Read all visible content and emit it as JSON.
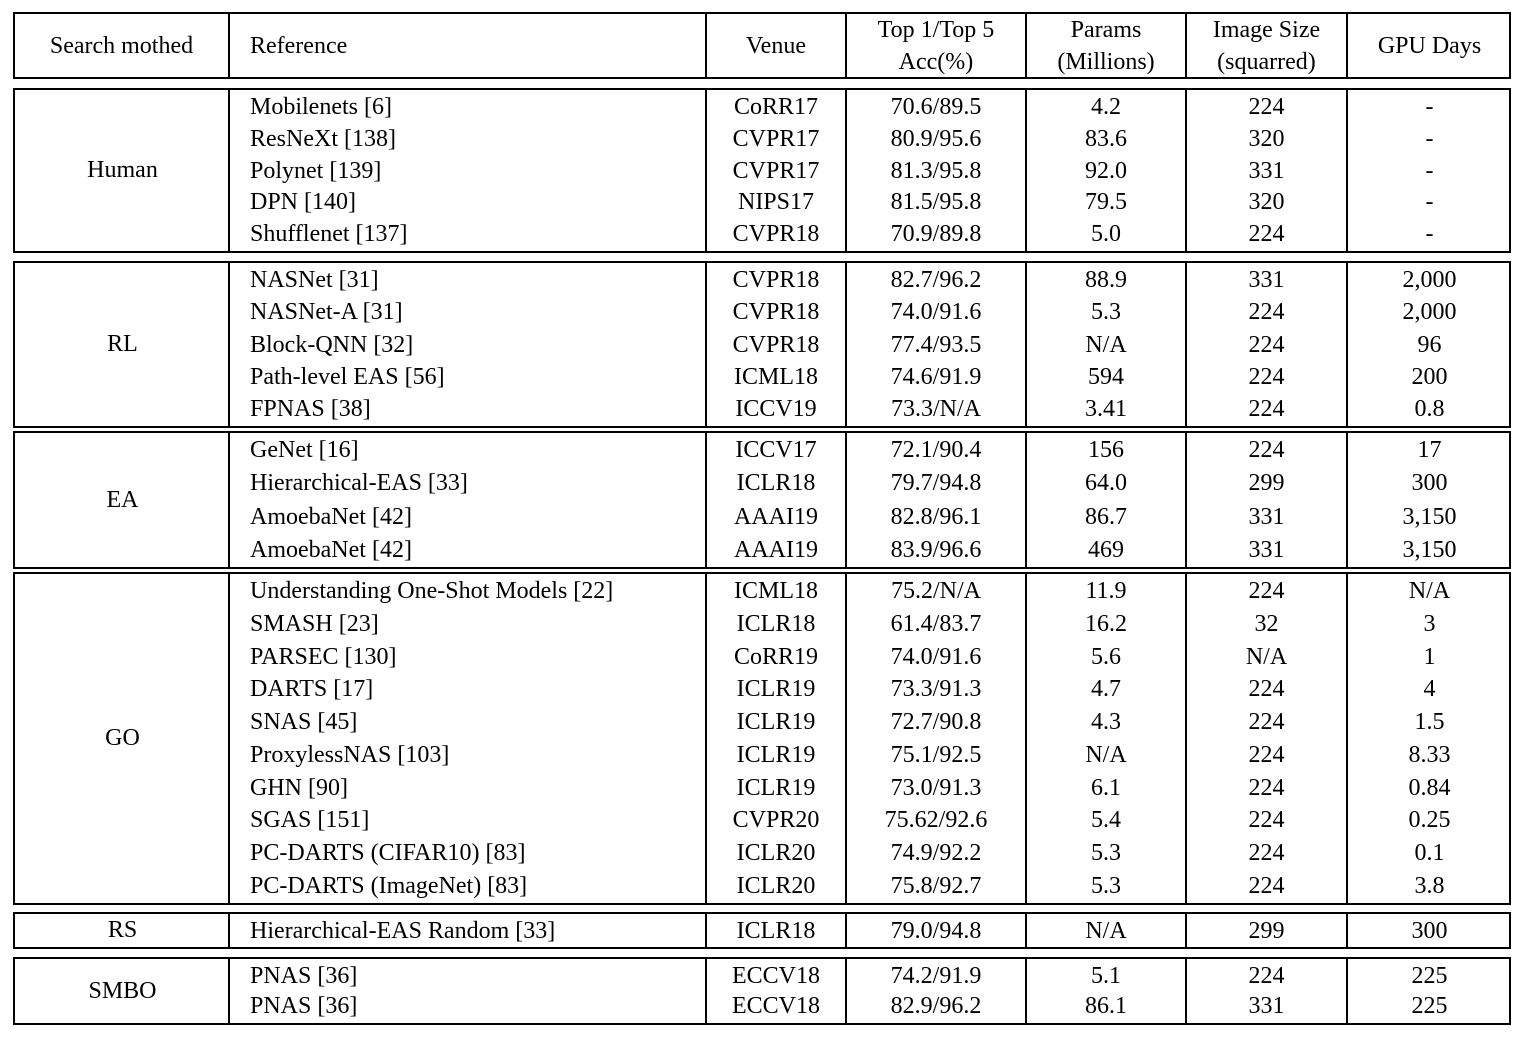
{
  "table": {
    "headers": {
      "method": "Search mothed",
      "reference": "Reference",
      "venue": "Venue",
      "acc_line1": "Top 1/Top 5",
      "acc_line2": "Acc(%)",
      "params_line1": "Params",
      "params_line2": "(Millions)",
      "size_line1": "Image Size",
      "size_line2": "(squarred)",
      "gpu": "GPU Days"
    },
    "groups": [
      {
        "method": "Human",
        "rows": [
          {
            "reference": "Mobilenets [6]",
            "venue": "CoRR17",
            "acc": "70.6/89.5",
            "params": "4.2",
            "size": "224",
            "gpu": "-"
          },
          {
            "reference": "ResNeXt [138]",
            "venue": "CVPR17",
            "acc": "80.9/95.6",
            "params": "83.6",
            "size": "320",
            "gpu": "-"
          },
          {
            "reference": "Polynet [139]",
            "venue": "CVPR17",
            "acc": "81.3/95.8",
            "params": "92.0",
            "size": "331",
            "gpu": "-"
          },
          {
            "reference": "DPN [140]",
            "venue": "NIPS17",
            "acc": "81.5/95.8",
            "params": "79.5",
            "size": "320",
            "gpu": "-"
          },
          {
            "reference": "Shufflenet [137]",
            "venue": "CVPR18",
            "acc": "70.9/89.8",
            "params": "5.0",
            "size": "224",
            "gpu": "-"
          }
        ]
      },
      {
        "method": "RL",
        "rows": [
          {
            "reference": "NASNet [31]",
            "venue": "CVPR18",
            "acc": "82.7/96.2",
            "params": "88.9",
            "size": "331",
            "gpu": "2,000"
          },
          {
            "reference": "NASNet-A [31]",
            "venue": "CVPR18",
            "acc": "74.0/91.6",
            "params": "5.3",
            "size": "224",
            "gpu": "2,000"
          },
          {
            "reference": "Block-QNN [32]",
            "venue": "CVPR18",
            "acc": "77.4/93.5",
            "params": "N/A",
            "size": "224",
            "gpu": "96"
          },
          {
            "reference": "Path-level EAS [56]",
            "venue": "ICML18",
            "acc": "74.6/91.9",
            "params": "594",
            "size": "224",
            "gpu": "200"
          },
          {
            "reference": "FPNAS [38]",
            "venue": "ICCV19",
            "acc": "73.3/N/A",
            "params": "3.41",
            "size": "224",
            "gpu": "0.8"
          }
        ]
      },
      {
        "method": "EA",
        "rows": [
          {
            "reference": "GeNet [16]",
            "venue": "ICCV17",
            "acc": "72.1/90.4",
            "params": "156",
            "size": "224",
            "gpu": "17"
          },
          {
            "reference": "Hierarchical-EAS [33]",
            "venue": "ICLR18",
            "acc": "79.7/94.8",
            "params": "64.0",
            "size": "299",
            "gpu": "300"
          },
          {
            "reference": "AmoebaNet [42]",
            "venue": "AAAI19",
            "acc": "82.8/96.1",
            "params": "86.7",
            "size": "331",
            "gpu": "3,150"
          },
          {
            "reference": "AmoebaNet [42]",
            "venue": "AAAI19",
            "acc": "83.9/96.6",
            "params": "469",
            "size": "331",
            "gpu": "3,150"
          }
        ]
      },
      {
        "method": "GO",
        "rows": [
          {
            "reference": "Understanding One-Shot Models [22]",
            "venue": "ICML18",
            "acc": "75.2/N/A",
            "params": "11.9",
            "size": "224",
            "gpu": "N/A"
          },
          {
            "reference": "SMASH [23]",
            "venue": "ICLR18",
            "acc": "61.4/83.7",
            "params": "16.2",
            "size": "32",
            "gpu": "3"
          },
          {
            "reference": "PARSEC [130]",
            "venue": "CoRR19",
            "acc": "74.0/91.6",
            "params": "5.6",
            "size": "N/A",
            "gpu": "1"
          },
          {
            "reference": "DARTS [17]",
            "venue": "ICLR19",
            "acc": "73.3/91.3",
            "params": "4.7",
            "size": "224",
            "gpu": "4"
          },
          {
            "reference": "SNAS [45]",
            "venue": "ICLR19",
            "acc": "72.7/90.8",
            "params": "4.3",
            "size": "224",
            "gpu": "1.5"
          },
          {
            "reference": "ProxylessNAS [103]",
            "venue": "ICLR19",
            "acc": "75.1/92.5",
            "params": "N/A",
            "size": "224",
            "gpu": "8.33"
          },
          {
            "reference": "GHN [90]",
            "venue": "ICLR19",
            "acc": "73.0/91.3",
            "params": "6.1",
            "size": "224",
            "gpu": "0.84"
          },
          {
            "reference": "SGAS [151]",
            "venue": "CVPR20",
            "acc": "75.62/92.6",
            "params": "5.4",
            "size": "224",
            "gpu": "0.25"
          },
          {
            "reference": "PC-DARTS (CIFAR10) [83]",
            "venue": "ICLR20",
            "acc": "74.9/92.2",
            "params": "5.3",
            "size": "224",
            "gpu": "0.1"
          },
          {
            "reference": "PC-DARTS (ImageNet) [83]",
            "venue": "ICLR20",
            "acc": "75.8/92.7",
            "params": "5.3",
            "size": "224",
            "gpu": "3.8"
          }
        ]
      },
      {
        "method": "RS",
        "rows": [
          {
            "reference": "Hierarchical-EAS Random [33]",
            "venue": "ICLR18",
            "acc": "79.0/94.8",
            "params": "N/A",
            "size": "299",
            "gpu": "300"
          }
        ]
      },
      {
        "method": "SMBO",
        "rows": [
          {
            "reference": "PNAS [36]",
            "venue": "ECCV18",
            "acc": "74.2/91.9",
            "params": "5.1",
            "size": "224",
            "gpu": "225"
          },
          {
            "reference": "PNAS [36]",
            "venue": "ECCV18",
            "acc": "82.9/96.2",
            "params": "86.1",
            "size": "331",
            "gpu": "225"
          }
        ]
      }
    ]
  }
}
